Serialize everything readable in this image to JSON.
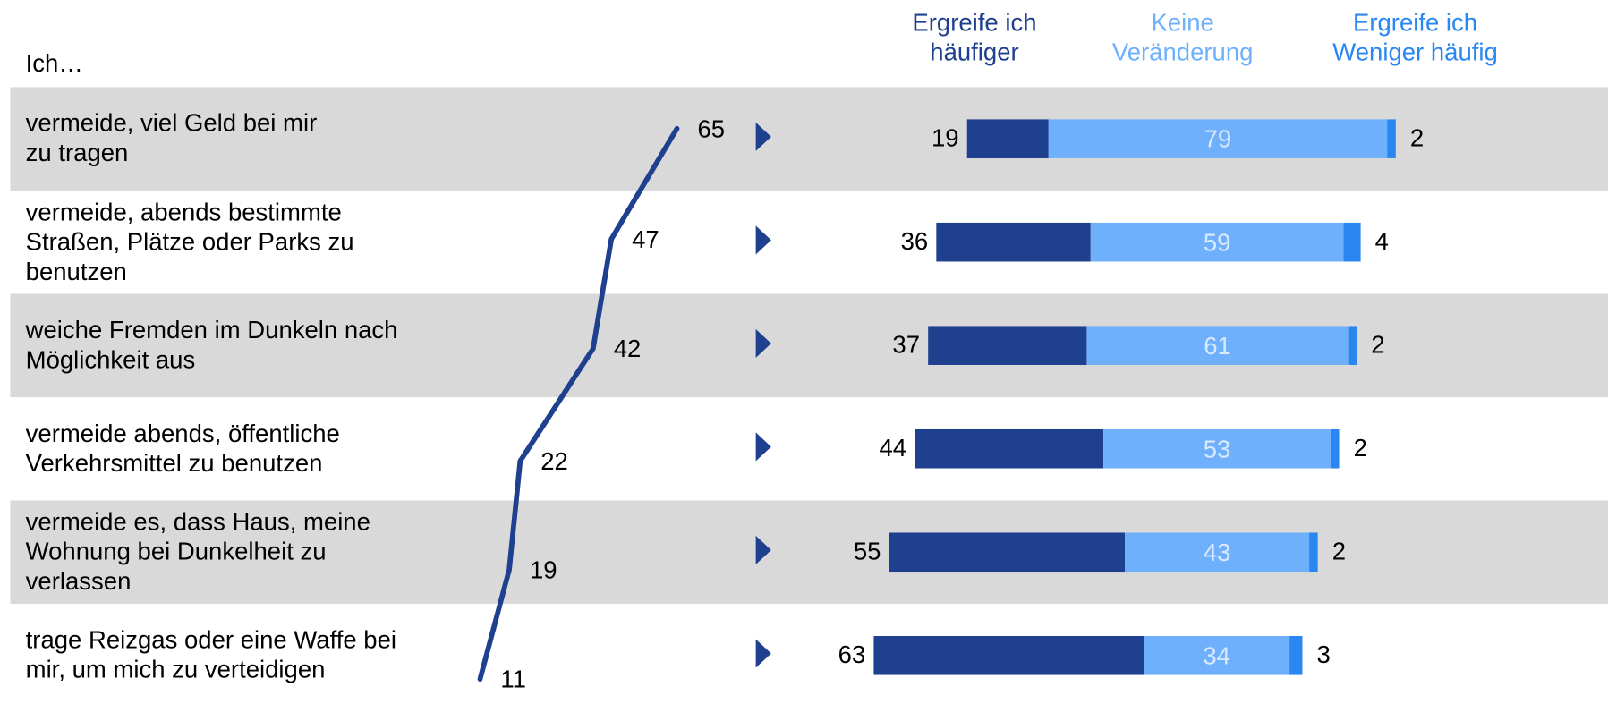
{
  "chart_data": [
    {
      "type": "line",
      "row_header": "Ich…",
      "categories": [
        "vermeide, viel Geld bei mir\nzu tragen",
        "vermeide, abends bestimmte\nStraßen, Plätze oder Parks zu\nbenutzen",
        "weiche Fremden im Dunkeln nach\nMöglichkeit aus",
        "vermeide abends, öffentliche\nVerkehrsmittel zu benutzen",
        "vermeide es, dass Haus, meine\nWohnung bei Dunkelheit zu\nverlassen",
        "trage Reizgas oder eine Waffe bei\nmir, um mich zu verteidigen"
      ],
      "values": [
        65,
        47,
        42,
        22,
        19,
        11
      ],
      "color": "#1f3f8f"
    },
    {
      "type": "bar",
      "orientation": "horizontal",
      "stacked": true,
      "series": [
        {
          "name": "Ergreife ich\nhäufiger",
          "color": "#1f3f8f",
          "values": [
            19,
            36,
            37,
            44,
            55,
            63
          ]
        },
        {
          "name": "Keine\nVeränderung",
          "color": "#6eb0fb",
          "values": [
            79,
            59,
            61,
            53,
            43,
            34
          ]
        },
        {
          "name": "Ergreife ich\nWeniger häufig",
          "color": "#2a86f0",
          "values": [
            2,
            4,
            2,
            2,
            2,
            3
          ]
        }
      ]
    }
  ]
}
